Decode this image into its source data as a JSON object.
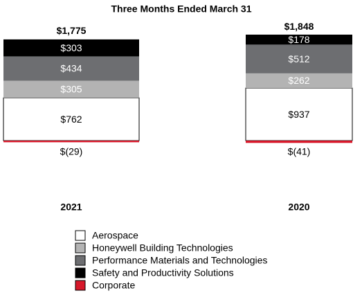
{
  "chart_data": {
    "type": "bar",
    "stacked": true,
    "title": "Three Months Ended March 31",
    "categories": [
      "2021",
      "2020"
    ],
    "series": [
      {
        "name": "Aerospace",
        "color": "#ffffff",
        "values": [
          762,
          937
        ],
        "value_labels": [
          "$762",
          "$937"
        ]
      },
      {
        "name": "Honeywell Building Technologies",
        "color": "#b3b3b3",
        "values": [
          305,
          262
        ],
        "value_labels": [
          "$305",
          "$262"
        ]
      },
      {
        "name": "Performance Materials and Technologies",
        "color": "#6d6e71",
        "values": [
          434,
          512
        ],
        "value_labels": [
          "$434",
          "$512"
        ]
      },
      {
        "name": "Safety and Productivity Solutions",
        "color": "#000000",
        "values": [
          303,
          178
        ],
        "value_labels": [
          "$303",
          "$178"
        ]
      },
      {
        "name": "Corporate",
        "color": "#d7182a",
        "values": [
          -29,
          -41
        ],
        "value_labels": [
          "$(29)",
          "$(41)"
        ]
      }
    ],
    "totals": [
      1775,
      1848
    ],
    "total_labels": [
      "$1,775",
      "$1,848"
    ]
  }
}
